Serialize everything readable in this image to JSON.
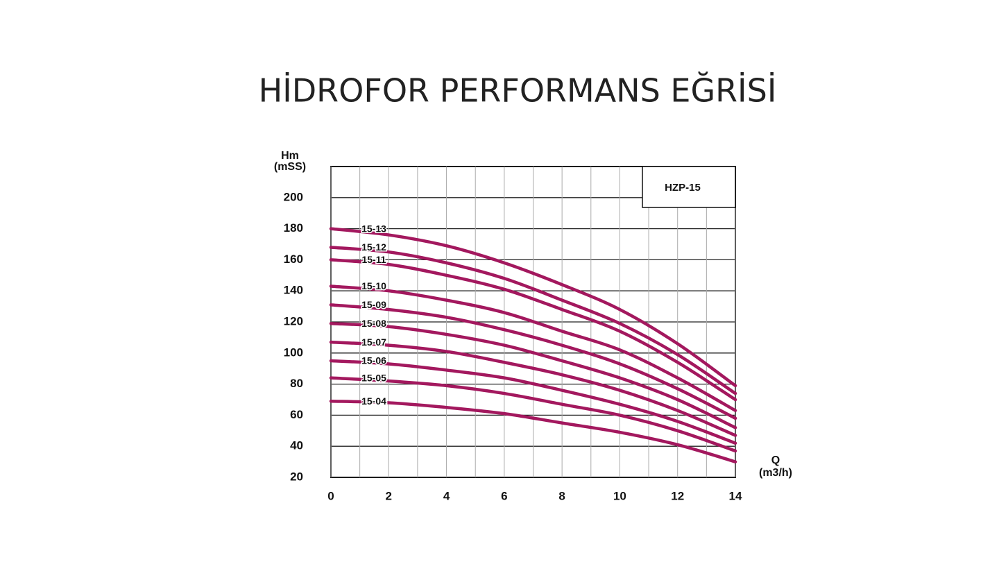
{
  "chart_data": {
    "type": "line",
    "title": "HİDROFOR PERFORMANS EĞRİSİ",
    "ylabel": [
      "Hm",
      "(mSS)"
    ],
    "xlabel": [
      "Q",
      "(m3/h)"
    ],
    "annotation": "HZP-15",
    "x": [
      0,
      2,
      4,
      6,
      8,
      10,
      12,
      14
    ],
    "xlim": [
      0,
      14
    ],
    "xticks": [
      0,
      2,
      4,
      6,
      8,
      10,
      12,
      14
    ],
    "ylim": [
      20,
      220
    ],
    "yticks": [
      20,
      40,
      60,
      80,
      100,
      120,
      140,
      160,
      180,
      200
    ],
    "grid": true,
    "series": [
      {
        "name": "15-13",
        "color": "#a3185e",
        "values": [
          180,
          176,
          169,
          158,
          144,
          128,
          106,
          79
        ]
      },
      {
        "name": "15-12",
        "color": "#a3185e",
        "values": [
          168,
          165,
          158,
          148,
          134,
          119,
          99,
          74
        ]
      },
      {
        "name": "15-11",
        "color": "#a3185e",
        "values": [
          160,
          157,
          150,
          141,
          128,
          114,
          94,
          70
        ]
      },
      {
        "name": "15-10",
        "color": "#a3185e",
        "values": [
          143,
          140,
          134,
          126,
          114,
          102,
          84,
          63
        ]
      },
      {
        "name": "15-09",
        "color": "#a3185e",
        "values": [
          131,
          128,
          123,
          115,
          105,
          93,
          77,
          58
        ]
      },
      {
        "name": "15-08",
        "color": "#a3185e",
        "values": [
          119,
          117,
          112,
          105,
          95,
          84,
          70,
          52
        ]
      },
      {
        "name": "15-07",
        "color": "#a3185e",
        "values": [
          107,
          105,
          101,
          94,
          86,
          76,
          63,
          47
        ]
      },
      {
        "name": "15-06",
        "color": "#a3185e",
        "values": [
          95,
          93,
          89,
          84,
          76,
          67,
          56,
          42
        ]
      },
      {
        "name": "15-05",
        "color": "#a3185e",
        "values": [
          84,
          82,
          79,
          74,
          67,
          60,
          50,
          37
        ]
      },
      {
        "name": "15-04",
        "color": "#a3185e",
        "values": [
          69,
          68,
          65,
          61,
          55,
          49,
          41,
          30
        ]
      }
    ]
  }
}
